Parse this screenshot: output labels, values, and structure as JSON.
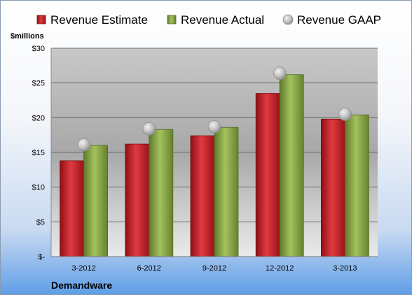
{
  "chart_data": {
    "type": "bar",
    "company": "Demandware",
    "unit_label": "$millions",
    "categories": [
      "3-2012",
      "6-2012",
      "9-2012",
      "12-2012",
      "3-2013"
    ],
    "series": [
      {
        "name": "Revenue Estimate",
        "kind": "bar",
        "color": "#d0272e",
        "values": [
          13.8,
          16.2,
          17.4,
          23.5,
          19.8
        ]
      },
      {
        "name": "Revenue Actual",
        "kind": "bar",
        "color": "#8fae4a",
        "values": [
          16.0,
          18.3,
          18.6,
          26.2,
          20.4
        ]
      },
      {
        "name": "Revenue GAAP",
        "kind": "marker",
        "color": "#bfbfbf",
        "values": [
          16.1,
          18.4,
          18.7,
          26.4,
          20.5
        ]
      }
    ],
    "ylim": [
      0,
      30
    ],
    "y_ticks": [
      0,
      5,
      10,
      15,
      20,
      25,
      30
    ],
    "y_tick_labels": [
      "$-",
      "$5",
      "$10",
      "$15",
      "$20",
      "$25",
      "$30"
    ],
    "grid": true,
    "legend_position": "top"
  }
}
